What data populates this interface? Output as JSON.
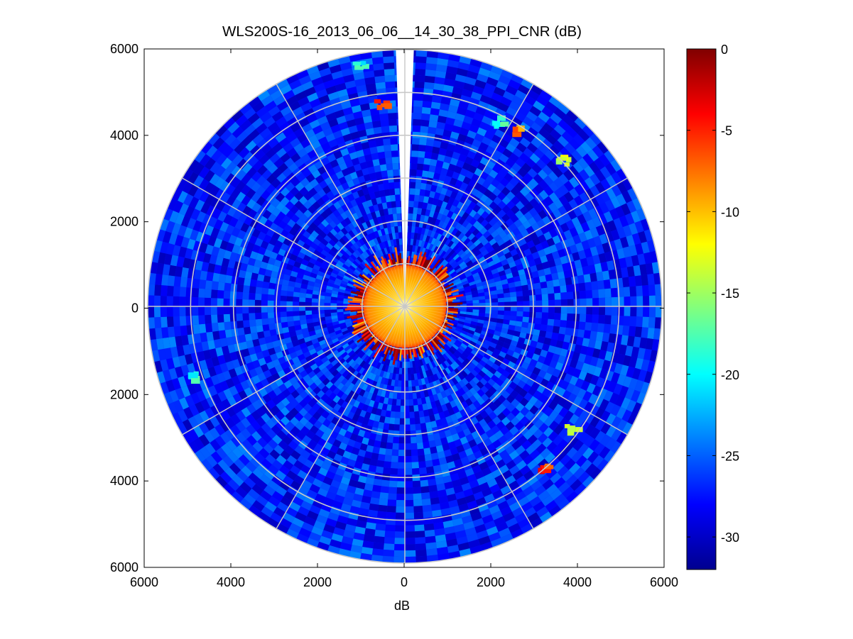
{
  "chart_data": {
    "type": "heatmap",
    "subtype": "polar-ppi",
    "title": "WLS200S-16_2013_06_06__14_30_38_PPI_CNR (dB)",
    "xlabel": "dB",
    "ylabel": "",
    "xlim": [
      -6000,
      6000
    ],
    "ylim": [
      -6000,
      6000
    ],
    "x_ticks": [
      -6000,
      -4000,
      -2000,
      0,
      2000,
      4000,
      6000
    ],
    "y_ticks": [
      -6000,
      -4000,
      -2000,
      0,
      2000,
      4000,
      6000
    ],
    "x_tick_labels": [
      "6000",
      "4000",
      "2000",
      "0",
      "2000",
      "4000",
      "6000"
    ],
    "y_tick_labels": [
      "6000",
      "4000",
      "2000",
      "0",
      "2000",
      "4000",
      "6000"
    ],
    "max_range": 6000,
    "range_rings": [
      1000,
      2000,
      3000,
      4000,
      5000,
      6000
    ],
    "radial_spokes_deg": [
      0,
      30,
      60,
      90,
      120,
      150,
      180,
      210,
      240,
      270,
      300,
      330
    ],
    "missing_sector_deg": [
      -2,
      2
    ],
    "grid": true,
    "colormap": "jet",
    "colorbar": {
      "min": -32,
      "max": 0,
      "ticks": [
        0,
        -5,
        -10,
        -15,
        -20,
        -25,
        -30
      ],
      "tick_labels": [
        "0",
        "-5",
        "-10",
        "-15",
        "-20",
        "-25",
        "-30"
      ]
    },
    "regions": [
      {
        "name": "background",
        "r_min": 1400,
        "r_max": 6000,
        "cnr_db": -27
      },
      {
        "name": "near-field core",
        "r_min": 0,
        "r_max": 1000,
        "cnr_db": -10
      },
      {
        "name": "boundary ring",
        "r_min": 1000,
        "r_max": 1400,
        "cnr_db": -4
      }
    ],
    "hotspots": [
      {
        "x": -1000,
        "y": 5600,
        "cnr_db": -20
      },
      {
        "x": -500,
        "y": 4700,
        "cnr_db": -7
      },
      {
        "x": 2200,
        "y": 4300,
        "cnr_db": -18
      },
      {
        "x": 2600,
        "y": 4100,
        "cnr_db": -9
      },
      {
        "x": 3700,
        "y": 3400,
        "cnr_db": -14
      },
      {
        "x": -4900,
        "y": -1600,
        "cnr_db": -19
      },
      {
        "x": 3900,
        "y": -2800,
        "cnr_db": -16
      },
      {
        "x": 3200,
        "y": -3700,
        "cnr_db": -6
      }
    ]
  }
}
